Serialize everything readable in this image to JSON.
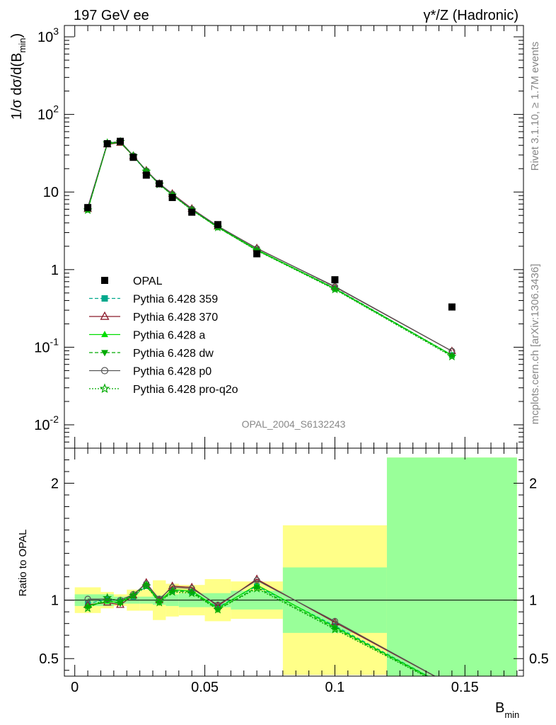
{
  "header": {
    "left_title": "197 GeV ee",
    "right_title": "γ*/Z (Hadronic)"
  },
  "side_labels": {
    "rivet": "Rivet 3.1.10, ≥ 1.7M events",
    "mcplots": "mcplots.cern.ch [arXiv:1306.3436]"
  },
  "watermark": "OPAL_2004_S6132243",
  "chart_data": {
    "type": "line",
    "ylabel": "1/σ dσ/d(B_min)",
    "ylabel_main": "1/σ dσ/d(B",
    "ylabel_sub": "min",
    "ylabel_close": ")",
    "xlabel_main": "B",
    "xlabel_sub": "min",
    "ratio_ylabel": "Ratio to OPAL",
    "xlim": [
      -0.004,
      0.1725
    ],
    "ylim_log": [
      0.005,
      1400
    ],
    "ratio_ylim": [
      0.35,
      2.3
    ],
    "yscale": "log",
    "grid": false,
    "legend_position": "middle-left",
    "x_ticks": [
      "0",
      "0.05",
      "0.1",
      "0.15"
    ],
    "x_tick_values": [
      0,
      0.05,
      0.1,
      0.15
    ],
    "y_tick_labels": [
      {
        "base": "10",
        "exp": "-2"
      },
      {
        "base": "10",
        "exp": "-1"
      },
      {
        "base": "1",
        "exp": ""
      },
      {
        "base": "10",
        "exp": ""
      },
      {
        "base": "10",
        "exp": "2"
      },
      {
        "base": "10",
        "exp": "3"
      }
    ],
    "y_tick_values": [
      0.01,
      0.1,
      1,
      10,
      100,
      1000
    ],
    "ratio_ticks": [
      "0.5",
      "1",
      "2"
    ],
    "ratio_tick_values": [
      0.5,
      1,
      2
    ],
    "bin_edges": [
      0,
      0.01,
      0.015,
      0.02,
      0.025,
      0.03,
      0.035,
      0.04,
      0.05,
      0.06,
      0.08,
      0.12,
      0.17
    ],
    "data": {
      "name": "OPAL",
      "x": [
        0.005,
        0.0125,
        0.0175,
        0.0225,
        0.0275,
        0.0325,
        0.0375,
        0.045,
        0.055,
        0.07,
        0.1,
        0.145
      ],
      "y": [
        6.3,
        42,
        45,
        28,
        16.5,
        12.8,
        8.5,
        5.5,
        3.8,
        1.6,
        0.74,
        0.33
      ],
      "stat_band": [
        0.05,
        0.05,
        0.03,
        0.03,
        0.03,
        0.04,
        0.05,
        0.06,
        0.06,
        0.08,
        0.28,
        1.22
      ],
      "total_band": [
        0.11,
        0.07,
        0.05,
        0.09,
        0.09,
        0.17,
        0.14,
        0.13,
        0.18,
        0.16,
        0.64,
        1.22
      ]
    },
    "series": [
      {
        "name": "Pythia 6.428 359",
        "color": "#00a88c",
        "dash": "5,3",
        "marker": "square",
        "ratio": [
          0.97,
          1.01,
          0.99,
          1.03,
          1.12,
          1.0,
          1.08,
          1.07,
          0.94,
          1.12,
          0.78,
          0.24
        ]
      },
      {
        "name": "Pythia 6.428 370",
        "color": "#8b1a2b",
        "dash": "",
        "marker": "open-triangle",
        "ratio": [
          0.96,
          0.98,
          0.96,
          1.04,
          1.15,
          1.0,
          1.12,
          1.11,
          0.95,
          1.18,
          0.81,
          0.27
        ]
      },
      {
        "name": "Pythia 6.428 a",
        "color": "#00dd00",
        "dash": "",
        "marker": "triangle",
        "ratio": [
          0.95,
          0.99,
          0.98,
          1.05,
          1.14,
          0.99,
          1.09,
          1.08,
          0.93,
          1.13,
          0.77,
          0.24
        ]
      },
      {
        "name": "Pythia 6.428 dw",
        "color": "#00aa00",
        "dash": "5,3",
        "marker": "inv-triangle",
        "ratio": [
          0.94,
          1.0,
          0.97,
          1.04,
          1.13,
          0.98,
          1.08,
          1.07,
          0.92,
          1.11,
          0.76,
          0.235
        ]
      },
      {
        "name": "Pythia 6.428 p0",
        "color": "#555555",
        "dash": "",
        "marker": "open-circle",
        "ratio": [
          1.01,
          1.01,
          1.0,
          1.05,
          1.14,
          1.01,
          1.11,
          1.1,
          0.96,
          1.17,
          0.82,
          0.27
        ]
      },
      {
        "name": "Pythia 6.428 pro-q2o",
        "color": "#00aa00",
        "dash": "2,2",
        "marker": "open-star",
        "ratio": [
          0.93,
          1.02,
          0.99,
          1.04,
          1.12,
          0.98,
          1.07,
          1.06,
          0.92,
          1.1,
          0.75,
          0.23
        ]
      }
    ]
  },
  "colors": {
    "stat_band": "#99ff99",
    "total_band": "#ffff88",
    "data_marker": "#000000"
  }
}
